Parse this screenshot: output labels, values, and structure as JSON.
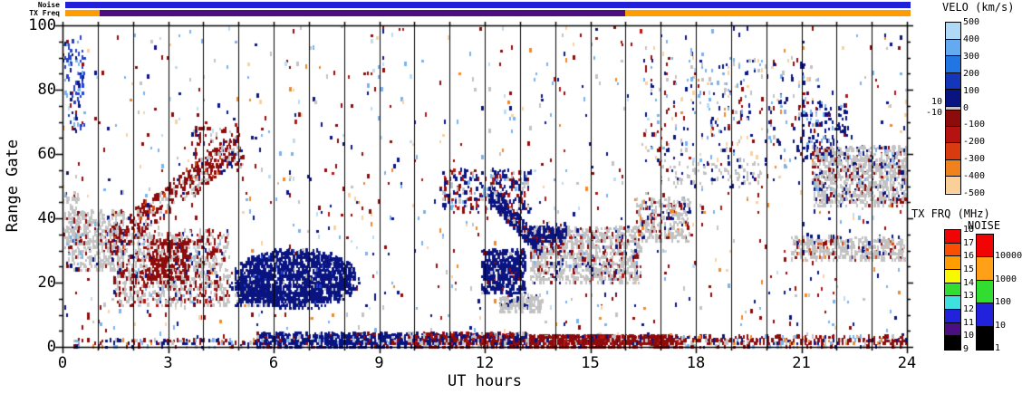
{
  "top_bars": {
    "noise_label": "Noise",
    "txfreq_label": "TX Freq",
    "noise_color": "#2020d8",
    "txfreq_segments": [
      {
        "color": "#ff9c00",
        "from": 0.0,
        "to": 0.041
      },
      {
        "color": "#4b0f82",
        "from": 0.041,
        "to": 0.662
      },
      {
        "color": "#ff9c00",
        "from": 0.662,
        "to": 1.0
      }
    ]
  },
  "colorbars": {
    "velo": {
      "title": "VELO (km/s)",
      "tick_labels": [
        "500",
        "400",
        "300",
        "200",
        "100",
        "0",
        "-100",
        "-200",
        "-300",
        "-400",
        "-500"
      ],
      "side_labels": [
        "10",
        "-10"
      ],
      "segment_colors": [
        "#b0d9f7",
        "#63aaf0",
        "#2176e3",
        "#1337b8",
        "#0a1480",
        "#8e0b0b",
        "#b51212",
        "#d93a10",
        "#f0821e",
        "#fbcf9a"
      ],
      "zero_band_color": "#c4c4c4"
    },
    "txfrq": {
      "title": "TX FRQ (MHz)",
      "tick_labels": [
        "18",
        "17",
        "16",
        "15",
        "14",
        "13",
        "12",
        "11",
        "10",
        "9"
      ],
      "segment_colors": [
        "#f00404",
        "#fa4f00",
        "#ff9c00",
        "#f8f800",
        "#32dd32",
        "#3ee0e0",
        "#2222dd",
        "#4b0f82",
        "#000000"
      ]
    },
    "noise": {
      "title": "NOISE",
      "tick_labels": [
        "10000",
        "1000",
        "100",
        "10",
        "1"
      ],
      "segment_colors": [
        "#f00404",
        "#ffa018",
        "#32dd32",
        "#2222dd",
        "#000000"
      ]
    }
  },
  "chart_data": {
    "type": "scatter",
    "subtype": "range-time-intensity",
    "xlabel": "UT hours",
    "ylabel": "Range Gate",
    "xlim": [
      0,
      24
    ],
    "ylim": [
      0,
      100
    ],
    "x_major_ticks": [
      0,
      3,
      6,
      9,
      12,
      15,
      18,
      21,
      24
    ],
    "x_minor_step": 1,
    "y_major_ticks": [
      0,
      20,
      40,
      60,
      80,
      100
    ],
    "y_minor_step": 5,
    "hour_lines": [
      1,
      2,
      3,
      4,
      5,
      6,
      7,
      8,
      9,
      10,
      11,
      12,
      13,
      14,
      15,
      16,
      17,
      18,
      19,
      20,
      21,
      22,
      23
    ],
    "seed": 1337,
    "palette": {
      "navy": "#0a1480",
      "blue": "#2343cf",
      "lightblue": "#7ab2ee",
      "paleblue": "#bcdcf6",
      "gray": "#c2c2c2",
      "darkred": "#8e0b0b",
      "red": "#b81515",
      "orangered": "#dd4811",
      "orange": "#f08a28",
      "peach": "#f8d0a0"
    },
    "clusters": [
      {
        "name": "ambient-scatter",
        "shape": "rect",
        "h0": 0,
        "h1": 24,
        "g0": 3,
        "g1": 100,
        "n": 950,
        "colors": {
          "navy": 0.2,
          "darkred": 0.24,
          "lightblue": 0.13,
          "paleblue": 0.08,
          "orange": 0.08,
          "peach": 0.1,
          "gray": 0.12,
          "red": 0.05
        }
      },
      {
        "name": "blue-patch-early-high",
        "shape": "rect",
        "h0": 0,
        "h1": 0.6,
        "g0": 68,
        "g1": 96,
        "n": 90,
        "colors": {
          "blue": 0.45,
          "navy": 0.2,
          "lightblue": 0.2,
          "orange": 0.07,
          "darkred": 0.08
        }
      },
      {
        "name": "gs-0000-mid",
        "shape": "rect",
        "h0": 0,
        "h1": 0.4,
        "g0": 28,
        "g1": 48,
        "n": 60,
        "colors": {
          "gray": 0.8,
          "navy": 0.1,
          "darkred": 0.1
        }
      },
      {
        "name": "gs-morning-upper",
        "shape": "rect",
        "h0": 0.1,
        "h1": 1.7,
        "g0": 24,
        "g1": 42,
        "n": 430,
        "colors": {
          "gray": 0.8,
          "darkred": 0.09,
          "navy": 0.05,
          "lightblue": 0.06
        }
      },
      {
        "name": "gs-morning-main",
        "shape": "rect",
        "h0": 1.4,
        "h1": 4.7,
        "g0": 13,
        "g1": 36,
        "n": 950,
        "colors": {
          "gray": 0.6,
          "darkred": 0.26,
          "navy": 0.06,
          "red": 0.05,
          "lightblue": 0.03
        }
      },
      {
        "name": "red-core-0230",
        "shape": "rect",
        "h0": 2.4,
        "h1": 3.6,
        "g0": 20,
        "g1": 33,
        "n": 280,
        "colors": {
          "darkred": 0.85,
          "gray": 0.1,
          "navy": 0.05
        }
      },
      {
        "name": "red-diagonal",
        "shape": "diag",
        "h0": 1.3,
        "h1": 4.9,
        "g0": 32,
        "g1": 62,
        "thick": 9,
        "n": 450,
        "colors": {
          "darkred": 0.6,
          "gray": 0.24,
          "navy": 0.08,
          "orangered": 0.08
        }
      },
      {
        "name": "red-tip-high",
        "shape": "rect",
        "h0": 3.6,
        "h1": 5.1,
        "g0": 55,
        "g1": 68,
        "n": 90,
        "colors": {
          "darkred": 0.7,
          "gray": 0.2,
          "navy": 0.1
        }
      },
      {
        "name": "navy-blob",
        "shape": "ellipse",
        "cx": 6.6,
        "cy": 21,
        "rx": 1.75,
        "ry": 9,
        "n": 1700,
        "colors": {
          "navy": 0.93,
          "blue": 0.03,
          "gray": 0.04
        }
      },
      {
        "name": "navy-blob-west",
        "shape": "rect",
        "h0": 4.9,
        "h1": 6.1,
        "g0": 13,
        "g1": 20,
        "n": 220,
        "colors": {
          "navy": 0.9,
          "gray": 0.1
        }
      },
      {
        "name": "bottom-early",
        "shape": "rect",
        "h0": 0.3,
        "h1": 5.5,
        "g0": 0,
        "g1": 2.5,
        "n": 130,
        "colors": {
          "darkred": 0.3,
          "navy": 0.3,
          "gray": 0.15,
          "orange": 0.1,
          "lightblue": 0.15
        }
      },
      {
        "name": "bottom-navy",
        "shape": "rect",
        "h0": 5.5,
        "h1": 9.8,
        "g0": 0,
        "g1": 4,
        "n": 750,
        "colors": {
          "navy": 0.75,
          "darkred": 0.1,
          "gray": 0.1,
          "lightblue": 0.05
        }
      },
      {
        "name": "bottom-mixed",
        "shape": "rect",
        "h0": 9.8,
        "h1": 13.2,
        "g0": 0,
        "g1": 4,
        "n": 800,
        "colors": {
          "navy": 0.35,
          "darkred": 0.35,
          "gray": 0.2,
          "red": 0.1
        }
      },
      {
        "name": "bottom-red",
        "shape": "rect",
        "h0": 13.2,
        "h1": 17.6,
        "g0": 0,
        "g1": 3.5,
        "n": 950,
        "colors": {
          "darkred": 0.7,
          "red": 0.12,
          "gray": 0.1,
          "navy": 0.08
        }
      },
      {
        "name": "bottom-late",
        "shape": "rect",
        "h0": 17.6,
        "h1": 24,
        "g0": 0,
        "g1": 3,
        "n": 330,
        "colors": {
          "darkred": 0.55,
          "navy": 0.15,
          "gray": 0.15,
          "orange": 0.05,
          "lightblue": 0.1
        }
      },
      {
        "name": "midday-band",
        "shape": "rect",
        "h0": 10.8,
        "h1": 13.3,
        "g0": 42,
        "g1": 55,
        "n": 300,
        "colors": {
          "navy": 0.45,
          "darkred": 0.2,
          "gray": 0.15,
          "red": 0.08,
          "lightblue": 0.12
        }
      },
      {
        "name": "navy-diag-noon",
        "shape": "diag",
        "h0": 12.1,
        "h1": 13.6,
        "g0": 48,
        "g1": 30,
        "thick": 6,
        "n": 350,
        "colors": {
          "navy": 0.8,
          "gray": 0.1,
          "darkred": 0.1
        }
      },
      {
        "name": "navy-patch-noon",
        "shape": "rect",
        "h0": 11.9,
        "h1": 13.1,
        "g0": 17,
        "g1": 30,
        "n": 480,
        "colors": {
          "navy": 0.85,
          "gray": 0.08,
          "darkred": 0.07
        }
      },
      {
        "name": "gs-patch-noon",
        "shape": "rect",
        "h0": 12.4,
        "h1": 13.6,
        "g0": 11,
        "g1": 16,
        "n": 170,
        "colors": {
          "gray": 0.9,
          "navy": 0.1
        }
      },
      {
        "name": "gs-afternoon",
        "shape": "rect",
        "h0": 13.3,
        "h1": 16.4,
        "g0": 20,
        "g1": 37,
        "n": 950,
        "colors": {
          "gray": 0.78,
          "darkred": 0.08,
          "navy": 0.08,
          "red": 0.03,
          "lightblue": 0.03
        }
      },
      {
        "name": "navy-speck-1330",
        "shape": "rect",
        "h0": 13.2,
        "h1": 14.3,
        "g0": 32,
        "g1": 38,
        "n": 160,
        "colors": {
          "navy": 0.8,
          "darkred": 0.1,
          "gray": 0.1
        }
      },
      {
        "name": "gs-dusk",
        "shape": "rect",
        "h0": 16.3,
        "h1": 17.8,
        "g0": 33,
        "g1": 46,
        "n": 270,
        "colors": {
          "gray": 0.7,
          "darkred": 0.15,
          "navy": 0.1,
          "orange": 0.05
        }
      },
      {
        "name": "speck-evening-high",
        "shape": "rect",
        "h0": 16.5,
        "h1": 21.5,
        "g0": 55,
        "g1": 90,
        "n": 280,
        "colors": {
          "navy": 0.3,
          "darkred": 0.2,
          "lightblue": 0.2,
          "peach": 0.15,
          "gray": 0.15
        }
      },
      {
        "name": "navy-cluster-2100",
        "shape": "rect",
        "h0": 20.8,
        "h1": 22.3,
        "g0": 58,
        "g1": 76,
        "n": 130,
        "colors": {
          "navy": 0.7,
          "lightblue": 0.15,
          "darkred": 0.15
        }
      },
      {
        "name": "gs-streak-1800",
        "shape": "rect",
        "h0": 17.0,
        "h1": 19.8,
        "g0": 50,
        "g1": 58,
        "n": 90,
        "colors": {
          "gray": 0.85,
          "navy": 0.15
        }
      },
      {
        "name": "gs-arc-late",
        "shape": "rect",
        "h0": 20.7,
        "h1": 23.9,
        "g0": 27,
        "g1": 34,
        "n": 430,
        "colors": {
          "gray": 0.8,
          "navy": 0.08,
          "darkred": 0.07,
          "orangered": 0.05
        }
      },
      {
        "name": "gs-late-high",
        "shape": "rect",
        "h0": 21.3,
        "h1": 24,
        "g0": 44,
        "g1": 62,
        "n": 950,
        "colors": {
          "gray": 0.72,
          "navy": 0.12,
          "darkred": 0.12,
          "lightblue": 0.04
        }
      }
    ]
  }
}
